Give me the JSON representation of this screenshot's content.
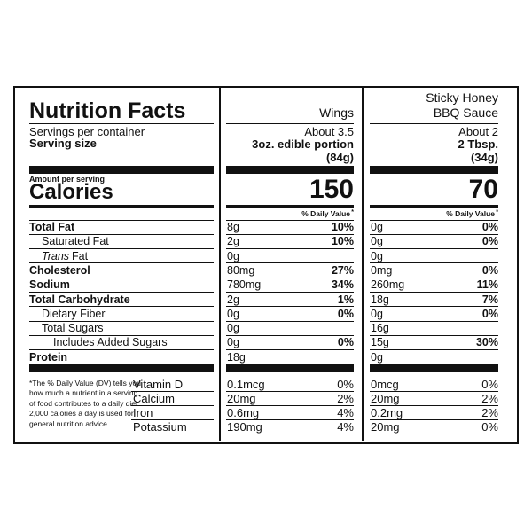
{
  "title": "Nutrition Facts",
  "servings_label": "Servings per container",
  "serving_size_label": "Serving size",
  "amount_per_serving": "Amount per serving",
  "calories_label": "Calories",
  "dv_header": "% Daily Value",
  "dv_mark": "*",
  "nutrients": [
    {
      "label": "Total Fat"
    },
    {
      "label": "Saturated Fat"
    },
    {
      "label_italic": "Trans",
      "label": "Fat"
    },
    {
      "label": "Cholesterol"
    },
    {
      "label": "Sodium"
    },
    {
      "label": "Total Carbohydrate"
    },
    {
      "label": "Dietary Fiber"
    },
    {
      "label": "Total Sugars"
    },
    {
      "label": "Includes Added Sugars"
    },
    {
      "label": "Protein"
    }
  ],
  "vitamins": [
    "Vitamin D",
    "Calcium",
    "Iron",
    "Potassium"
  ],
  "footnote": [
    "*The % Daily Value (DV) tells you",
    "how much a nutrient in a serving",
    "of food contributes to a daily diet.",
    "2,000 calories a day is used for",
    "general nutrition advice."
  ],
  "columns": [
    {
      "name": [
        "Wings"
      ],
      "servings": "About 3.5",
      "serving_size": "3oz. edible portion",
      "serving_weight": "(84g)",
      "calories": "150",
      "amounts": [
        "8g",
        "2g",
        "0g",
        "80mg",
        "780mg",
        "2g",
        "0g",
        "0g",
        "0g",
        "18g"
      ],
      "dv": [
        "10%",
        "10%",
        null,
        "27%",
        "34%",
        "1%",
        "0%",
        null,
        "0%",
        null
      ],
      "vitamin_amounts": [
        "0.1mcg",
        "20mg",
        "0.6mg",
        "190mg"
      ],
      "vitamin_dv": [
        "0%",
        "2%",
        "4%",
        "4%"
      ]
    },
    {
      "name": [
        "Sticky Honey",
        "BBQ Sauce"
      ],
      "servings": "About 2",
      "serving_size": "2 Tbsp.",
      "serving_weight": "(34g)",
      "calories": "70",
      "amounts": [
        "0g",
        "0g",
        "0g",
        "0mg",
        "260mg",
        "18g",
        "0g",
        "16g",
        "15g",
        "0g"
      ],
      "dv": [
        "0%",
        "0%",
        null,
        "0%",
        "11%",
        "7%",
        "0%",
        null,
        "30%",
        null
      ],
      "vitamin_amounts": [
        "0mcg",
        "20mg",
        "0.2mg",
        "20mg"
      ],
      "vitamin_dv": [
        "0%",
        "2%",
        "2%",
        "0%"
      ]
    }
  ]
}
